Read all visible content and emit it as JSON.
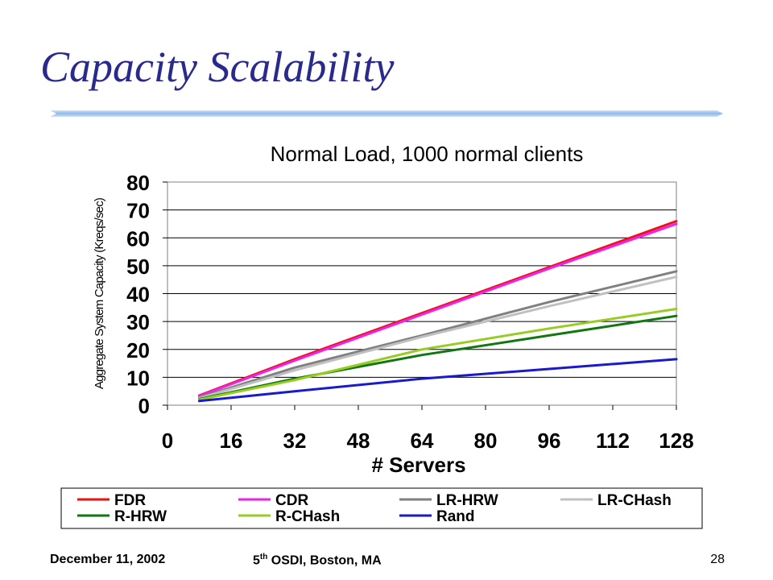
{
  "slide": {
    "title": "Capacity Scalability",
    "footer_left": "December 11, 2002",
    "footer_center_prefix": "5",
    "footer_center_sup": "th",
    "footer_center_suffix": " OSDI, Boston, MA",
    "page_number": "28"
  },
  "colors": {
    "title": "#2a2a8c",
    "rule": "#8fb8e8"
  },
  "chart_data": {
    "type": "line",
    "title": "Normal Load, 1000 normal clients",
    "xlabel": "# Servers",
    "ylabel": "Aggregate System Capacity (Kreqs/sec)",
    "xlim": [
      0,
      128
    ],
    "ylim": [
      0,
      80
    ],
    "xticks": [
      0,
      16,
      32,
      48,
      64,
      80,
      96,
      112,
      128
    ],
    "yticks": [
      0,
      10,
      20,
      30,
      40,
      50,
      60,
      70,
      80
    ],
    "grid": "horizontal",
    "legend": "bottom",
    "series": [
      {
        "name": "FDR",
        "color": "#ee1111",
        "points": [
          [
            8,
            3.5
          ],
          [
            32,
            16.5
          ],
          [
            64,
            33
          ],
          [
            96,
            49.5
          ],
          [
            128,
            66
          ]
        ]
      },
      {
        "name": "CDR",
        "color": "#ee22ee",
        "points": [
          [
            8,
            3.3
          ],
          [
            32,
            16
          ],
          [
            64,
            32.5
          ],
          [
            96,
            49
          ],
          [
            128,
            65
          ]
        ]
      },
      {
        "name": "LR-HRW",
        "color": "#808080",
        "points": [
          [
            8,
            2.8
          ],
          [
            32,
            13.5
          ],
          [
            64,
            25
          ],
          [
            96,
            37
          ],
          [
            128,
            48
          ]
        ]
      },
      {
        "name": "LR-CHash",
        "color": "#c0c0c0",
        "points": [
          [
            8,
            2.5
          ],
          [
            32,
            12.5
          ],
          [
            64,
            24.5
          ],
          [
            96,
            35.5
          ],
          [
            128,
            46
          ]
        ]
      },
      {
        "name": "R-HRW",
        "color": "#117711",
        "points": [
          [
            8,
            2.2
          ],
          [
            32,
            9.5
          ],
          [
            64,
            18
          ],
          [
            96,
            25
          ],
          [
            128,
            32
          ]
        ]
      },
      {
        "name": "R-CHash",
        "color": "#99cc22",
        "points": [
          [
            8,
            2.0
          ],
          [
            32,
            9.0
          ],
          [
            64,
            20
          ],
          [
            96,
            27.5
          ],
          [
            128,
            34.5
          ]
        ]
      },
      {
        "name": "Rand",
        "color": "#1a1acc",
        "points": [
          [
            8,
            1.5
          ],
          [
            32,
            5
          ],
          [
            64,
            9.5
          ],
          [
            96,
            13
          ],
          [
            128,
            16.5
          ]
        ]
      }
    ]
  }
}
